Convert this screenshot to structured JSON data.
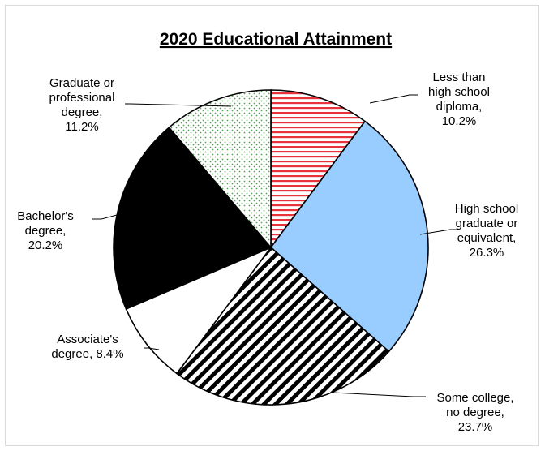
{
  "chart_data": {
    "type": "pie",
    "title": "2020 Educational Attainment",
    "start_angle_deg": 0,
    "direction": "clockwise",
    "slices": [
      {
        "label_lines": [
          "Less than",
          "high school",
          "diploma,",
          "10.2%"
        ],
        "value": 10.2,
        "fill": "#e8323c",
        "pattern": "horizontal-stripes"
      },
      {
        "label_lines": [
          "High school",
          "graduate or",
          "equivalent,",
          "26.3%"
        ],
        "value": 26.3,
        "fill": "#99ccff",
        "pattern": "solid"
      },
      {
        "label_lines": [
          "Some college,",
          "no degree,",
          "23.7%"
        ],
        "value": 23.7,
        "fill": "#000000",
        "pattern": "diagonal-stripes"
      },
      {
        "label_lines": [
          "Associate's",
          "degree, 8.4%"
        ],
        "value": 8.4,
        "fill": "#ffffff",
        "pattern": "solid"
      },
      {
        "label_lines": [
          "Bachelor's",
          "degree,",
          "20.2%"
        ],
        "value": 20.2,
        "fill": "#000000",
        "pattern": "solid"
      },
      {
        "label_lines": [
          "Graduate or",
          "professional",
          "degree,",
          "11.2%"
        ],
        "value": 11.2,
        "fill": "#5aa05a",
        "pattern": "dots"
      }
    ]
  }
}
